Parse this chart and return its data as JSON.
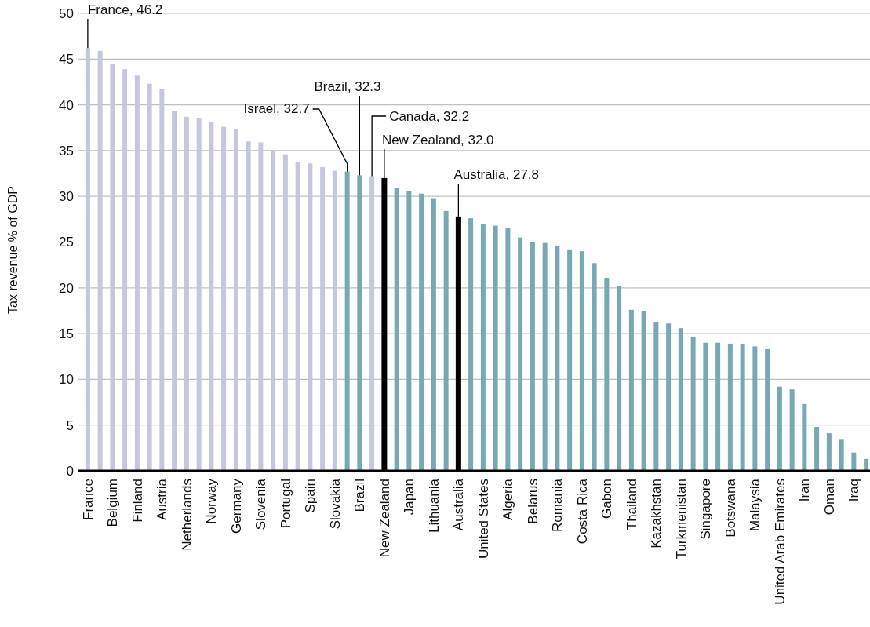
{
  "chart_data": {
    "type": "bar",
    "ylabel": "Tax revenue % of GDP",
    "categories": [
      "France",
      null,
      "Belgium",
      null,
      "Finland",
      null,
      "Austria",
      null,
      "Netherlands",
      null,
      "Norway",
      null,
      "Germany",
      null,
      "Slovenia",
      null,
      "Portugal",
      null,
      "Spain",
      null,
      "Slovakia",
      null,
      "Brazil",
      null,
      "New Zealand",
      null,
      "Japan",
      null,
      "Lithuania",
      null,
      "Australia",
      null,
      "United States",
      null,
      "Algeria",
      null,
      "Belarus",
      null,
      "Romania",
      null,
      "Costa Rica",
      null,
      "Gabon",
      null,
      "Thailand",
      null,
      "Kazakhstan",
      null,
      "Turkmenistan",
      null,
      "Singapore",
      null,
      "Botswana",
      null,
      "Malaysia",
      null,
      "United Arab Emirates",
      null,
      "Iran",
      null,
      "Oman",
      null,
      "Iraq",
      null
    ],
    "values": [
      46.2,
      45.9,
      44.5,
      43.9,
      43.2,
      42.3,
      41.7,
      39.3,
      38.7,
      38.5,
      38.1,
      37.6,
      37.4,
      36.0,
      35.9,
      34.9,
      34.6,
      33.8,
      33.6,
      33.2,
      32.8,
      32.7,
      32.3,
      32.2,
      32.0,
      30.9,
      30.6,
      30.3,
      29.8,
      28.4,
      27.8,
      27.6,
      27.0,
      26.8,
      26.5,
      25.5,
      25.0,
      24.9,
      24.6,
      24.2,
      24.0,
      22.7,
      21.1,
      20.2,
      17.6,
      17.5,
      16.3,
      16.1,
      15.6,
      14.6,
      14.0,
      14.0,
      13.9,
      13.9,
      13.6,
      13.3,
      9.2,
      8.9,
      7.3,
      4.8,
      4.1,
      3.4,
      2.0,
      1.3
    ],
    "colors": [
      "#c5c7dd",
      "#c5c7dd",
      "#c5c7dd",
      "#c5c7dd",
      "#c5c7dd",
      "#c5c7dd",
      "#c5c7dd",
      "#c5c7dd",
      "#c5c7dd",
      "#c5c7dd",
      "#c5c7dd",
      "#c5c7dd",
      "#c5c7dd",
      "#c5c7dd",
      "#c5c7dd",
      "#c5c7dd",
      "#c5c7dd",
      "#c5c7dd",
      "#c5c7dd",
      "#c5c7dd",
      "#c5c7dd",
      "#78a9b2",
      "#78a9b2",
      "#c5c7dd",
      "#000000",
      "#78a9b2",
      "#78a9b2",
      "#78a9b2",
      "#78a9b2",
      "#78a9b2",
      "#000000",
      "#78a9b2",
      "#78a9b2",
      "#78a9b2",
      "#78a9b2",
      "#78a9b2",
      "#78a9b2",
      "#78a9b2",
      "#78a9b2",
      "#78a9b2",
      "#78a9b2",
      "#78a9b2",
      "#78a9b2",
      "#78a9b2",
      "#78a9b2",
      "#78a9b2",
      "#78a9b2",
      "#78a9b2",
      "#78a9b2",
      "#78a9b2",
      "#78a9b2",
      "#78a9b2",
      "#78a9b2",
      "#78a9b2",
      "#78a9b2",
      "#78a9b2",
      "#78a9b2",
      "#78a9b2",
      "#78a9b2",
      "#78a9b2",
      "#78a9b2",
      "#78a9b2",
      "#78a9b2",
      "#78a9b2"
    ],
    "value_labels": [
      "France, 46.2",
      null,
      null,
      null,
      null,
      null,
      null,
      null,
      null,
      null,
      null,
      null,
      null,
      null,
      null,
      null,
      null,
      null,
      null,
      null,
      null,
      "Israel, 32.7",
      "Brazil, 32.3",
      "Canada, 32.2",
      "New Zealand, 32.0",
      null,
      null,
      null,
      null,
      null,
      "Australia, 27.8",
      null,
      null,
      null,
      null,
      null,
      null,
      null,
      null,
      null,
      null,
      null,
      null,
      null,
      null,
      null,
      null,
      null,
      null,
      null,
      null,
      null,
      null,
      null,
      null,
      null,
      null,
      null,
      null,
      null,
      null,
      null,
      null,
      null
    ],
    "ylim": [
      0,
      50
    ],
    "yticks": [
      0,
      5,
      10,
      15,
      20,
      25,
      30,
      35,
      40,
      45,
      50
    ],
    "grid": "y"
  }
}
